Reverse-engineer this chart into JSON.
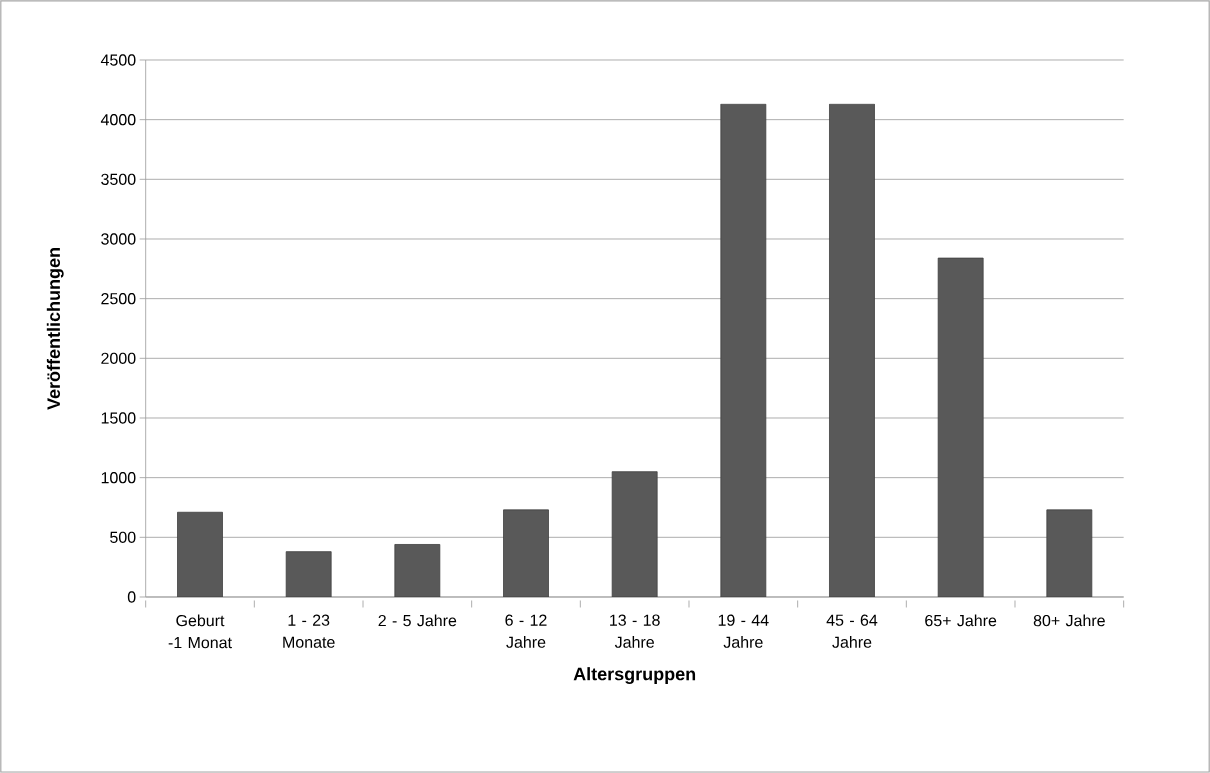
{
  "chart_data": {
    "type": "bar",
    "xlabel": "Altersgruppen",
    "ylabel": "Veröffentlichungen",
    "categories": [
      "Geburt -1 Monat",
      "1 - 23 Monate",
      "2 - 5 Jahre",
      "6 - 12 Jahre",
      "13 - 18 Jahre",
      "19 - 44 Jahre",
      "45 - 64 Jahre",
      "65+ Jahre",
      "80+ Jahre"
    ],
    "values": [
      710,
      380,
      440,
      730,
      1050,
      4130,
      4130,
      2840,
      730
    ],
    "color": "#595959",
    "ylim": [
      0,
      4500
    ],
    "yticks": [
      0,
      500,
      1000,
      1500,
      2000,
      2500,
      3000,
      3500,
      4000,
      4500
    ],
    "grid": "y"
  }
}
